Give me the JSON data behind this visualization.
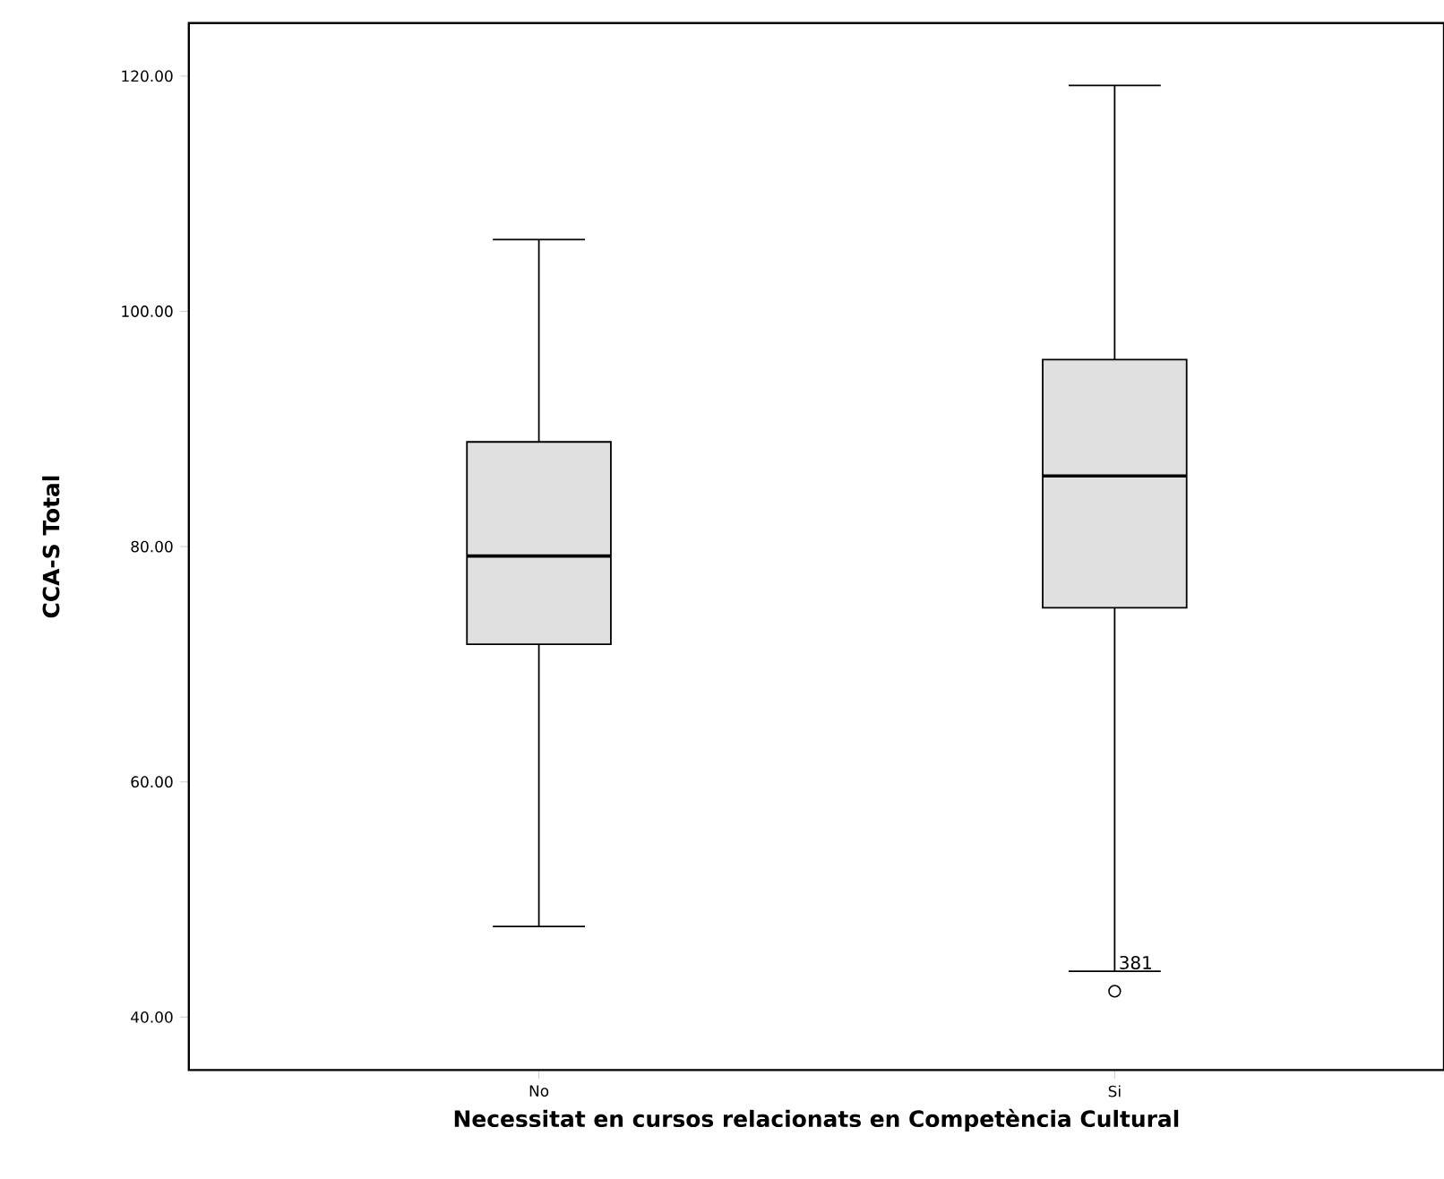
{
  "chart_data": {
    "type": "box",
    "xlabel": "Necessitat en cursos relacionats en Competència Cultural",
    "ylabel": "CCA-S Total",
    "categories": [
      "No",
      "Si"
    ],
    "series": [
      {
        "color": "#e0e0e0",
        "boxes": [
          {
            "low": 47.7,
            "q1": 71.7,
            "median": 79.2,
            "q3": 88.9,
            "high": 106.1
          },
          {
            "low": 43.9,
            "q1": 74.8,
            "median": 86.0,
            "q3": 95.9,
            "high": 119.2,
            "outliers": [
              42.2
            ]
          }
        ]
      }
    ],
    "ylim": [
      35.5,
      124.5
    ],
    "yticks": [
      {
        "value": 40,
        "label": "40.00"
      },
      {
        "value": 60,
        "label": "60.00"
      },
      {
        "value": 80,
        "label": "80.00"
      },
      {
        "value": 100,
        "label": "100.00"
      },
      {
        "value": 120,
        "label": "120.00"
      }
    ],
    "annotations": [
      "381"
    ],
    "grid": false
  }
}
